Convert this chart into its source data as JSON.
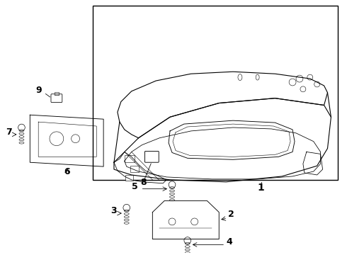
{
  "bg_color": "#ffffff",
  "line_color": "#000000",
  "font_size_labels": 9
}
